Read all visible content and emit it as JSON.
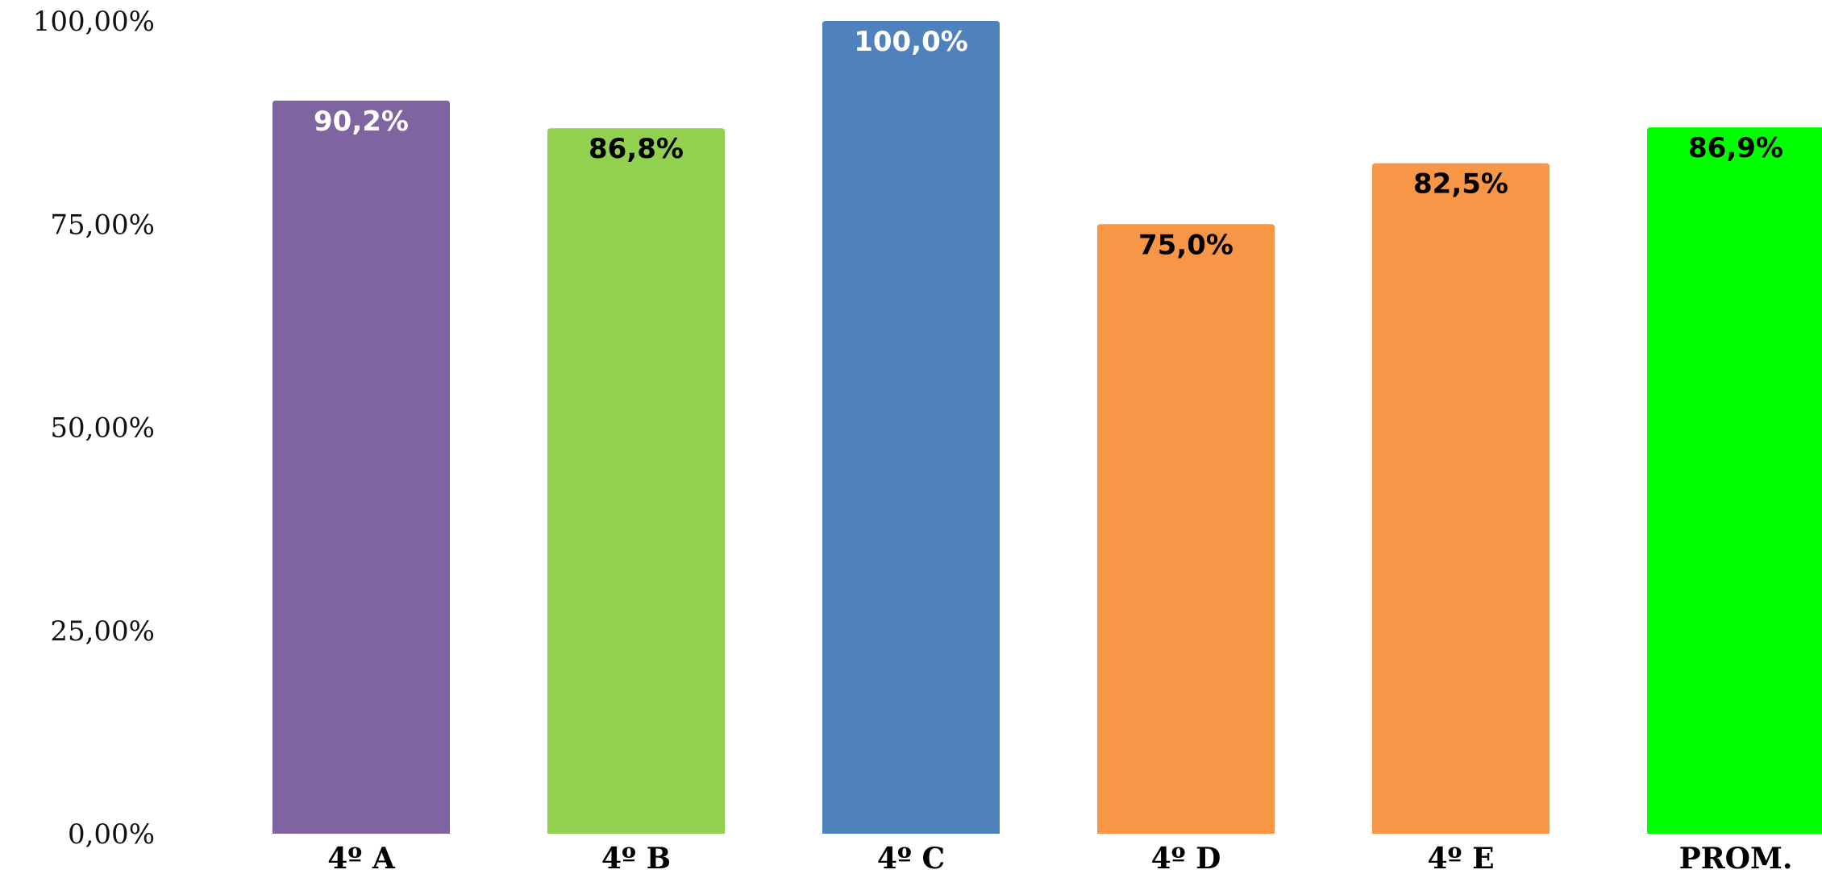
{
  "chart_data": {
    "type": "bar",
    "categories": [
      "4º A",
      "4º B",
      "4º C",
      "4º D",
      "4º E",
      "PROM."
    ],
    "values": [
      90.2,
      86.8,
      100.0,
      75.0,
      82.5,
      86.9
    ],
    "data_labels": [
      "90,2%",
      "86,8%",
      "100,0%",
      "75,0%",
      "82,5%",
      "86,9%"
    ],
    "bar_colors": [
      "#8064a2",
      "#92d050",
      "#4f81bd",
      "#f79646",
      "#f79646",
      "#00ff00"
    ],
    "label_colors": [
      "#ffffff",
      "#000000",
      "#ffffff",
      "#000000",
      "#000000",
      "#000000"
    ],
    "y_ticks": [
      {
        "value": 0,
        "label": "0,00%"
      },
      {
        "value": 25,
        "label": "25,00%"
      },
      {
        "value": 50,
        "label": "50,00%"
      },
      {
        "value": 75,
        "label": "75,00%"
      },
      {
        "value": 100,
        "label": "100,00%"
      }
    ],
    "ylim": [
      0,
      100
    ],
    "title": "",
    "xlabel": "",
    "ylabel": "",
    "grid": false,
    "legend": "none"
  }
}
